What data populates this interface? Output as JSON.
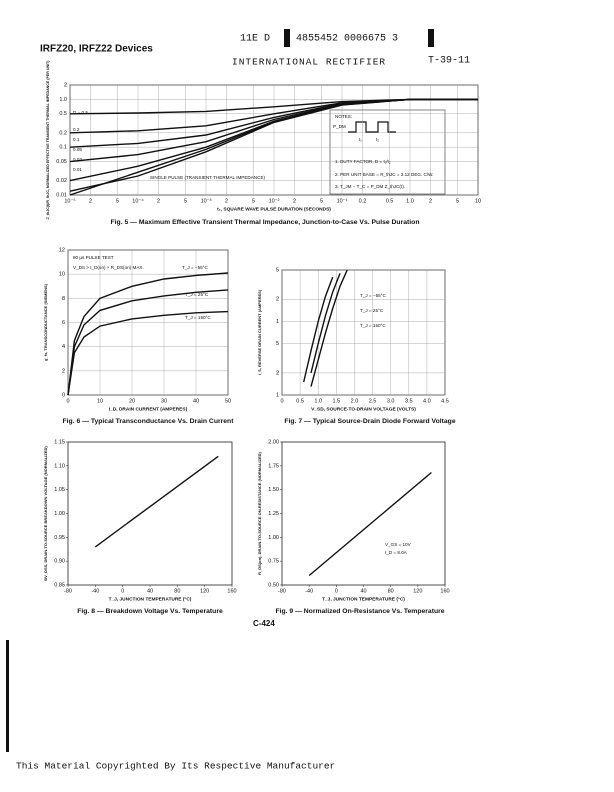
{
  "header": {
    "devices": "IRFZ20, IRFZ22 Devices",
    "code_a": "11E D",
    "code_b": "4855452 0006675 3",
    "company": "INTERNATIONAL RECTIFIER",
    "ref": "T-39-11"
  },
  "footer": {
    "page": "C-424",
    "copyright": "This Material Copyrighted By Its Respective Manufacturer"
  },
  "chart_data": [
    {
      "type": "line",
      "title": "Fig. 5 — Maximum Effective Transient Thermal Impedance, Junction-to-Case Vs. Pulse Duration",
      "x_label": "t₁, SQUARE WAVE PULSE DURATION (SECONDS)",
      "y_label": "Z_thJC(t)/R_thJC, NORMALIZED EFFECTIVE TRANSIENT THERMAL IMPEDANCE (PER UNIT)",
      "xscale": "log",
      "yscale": "log",
      "grid": true,
      "x": [
        1e-05,
        0.0001,
        0.001,
        0.01,
        0.1,
        1,
        10
      ],
      "series": [
        {
          "name": "D = 0.5",
          "color": "#111111",
          "values": [
            0.5,
            0.52,
            0.56,
            0.7,
            0.9,
            1,
            1
          ]
        },
        {
          "name": "0.2",
          "color": "#111111",
          "values": [
            0.2,
            0.22,
            0.28,
            0.5,
            0.85,
            1,
            1
          ]
        },
        {
          "name": "0.1",
          "color": "#111111",
          "values": [
            0.1,
            0.12,
            0.18,
            0.42,
            0.82,
            1,
            1
          ]
        },
        {
          "name": "0.05",
          "color": "#111111",
          "values": [
            0.05,
            0.07,
            0.13,
            0.38,
            0.8,
            1,
            1
          ]
        },
        {
          "name": "0.02",
          "color": "#111111",
          "values": [
            0.02,
            0.04,
            0.1,
            0.35,
            0.78,
            1,
            1
          ]
        },
        {
          "name": "0.01",
          "color": "#111111",
          "values": [
            0.01,
            0.03,
            0.09,
            0.34,
            0.77,
            1,
            1
          ]
        },
        {
          "name": "SINGLE PULSE (TRANSIENT THERMAL IMPEDANCE)",
          "color": "#111111",
          "values": [
            0.012,
            0.025,
            0.08,
            0.33,
            0.76,
            1,
            1
          ]
        }
      ],
      "annotations": [
        "NOTES:",
        "P_DM",
        "t₁",
        "t₂",
        "1. DUTY FACTOR, D = t₁/t₂",
        "2. PER UNIT BASE = R_thJC = 3.12 DEG. C/W.",
        "3. T_JM − T_C = P_DM Z_thJC(t)."
      ],
      "xlim": [
        1e-05,
        10
      ],
      "xticks": [
        {
          "value": 1e-05,
          "label": "10⁻⁵"
        },
        {
          "value": 2e-05,
          "label": "2"
        },
        {
          "value": 5e-05,
          "label": "5"
        },
        {
          "value": 0.0001,
          "label": "10⁻⁴"
        },
        {
          "value": 0.0002,
          "label": "2"
        },
        {
          "value": 0.0005,
          "label": "5"
        },
        {
          "value": 0.001,
          "label": "10⁻³"
        },
        {
          "value": 0.002,
          "label": "2"
        },
        {
          "value": 0.005,
          "label": "5"
        },
        {
          "value": 0.01,
          "label": "10⁻²"
        },
        {
          "value": 0.02,
          "label": "2"
        },
        {
          "value": 0.05,
          "label": "5"
        },
        {
          "value": 0.1,
          "label": "10⁻¹"
        },
        0.2,
        0.5,
        {
          "value": 1,
          "label": "1.0"
        },
        2,
        5,
        10
      ],
      "ylim": [
        0.01,
        2
      ],
      "yticks": [
        0.01,
        0.02,
        0.05,
        0.1,
        0.2,
        0.5,
        {
          "value": 1,
          "label": "1.0"
        },
        2
      ]
    },
    {
      "type": "line",
      "title": "Fig. 6 — Typical Transconductance Vs. Drain Current",
      "x_label": "I_D, DRAIN CURRENT (AMPERES)",
      "y_label": "g_fs, TRANSCONDUCTANCE (SIEMENS)",
      "grid": true,
      "x": [
        0,
        2,
        5,
        10,
        20,
        30,
        40,
        50
      ],
      "series": [
        {
          "name": "T_J = −55°C",
          "color": "#111111",
          "values": [
            0,
            4.5,
            6.5,
            8,
            9,
            9.6,
            9.9,
            10.1
          ]
        },
        {
          "name": "T_J = 25°C",
          "color": "#111111",
          "values": [
            0,
            4,
            5.8,
            7,
            7.8,
            8.2,
            8.5,
            8.7
          ]
        },
        {
          "name": "T_J = 150°C",
          "color": "#111111",
          "values": [
            0,
            3.5,
            4.8,
            5.7,
            6.3,
            6.6,
            6.8,
            6.9
          ]
        }
      ],
      "annotations": [
        "80 μs PULSE TEST",
        "V_DS > I_D(on) × R_DS(on) MAX."
      ],
      "xlim": [
        0,
        50
      ],
      "xticks": [
        0,
        10,
        20,
        30,
        40,
        50
      ],
      "ylim": [
        0,
        12
      ],
      "yticks": [
        0,
        2,
        4,
        6,
        8,
        10,
        12
      ]
    },
    {
      "type": "line",
      "title": "Fig. 7 — Typical Source-Drain Diode Forward Voltage",
      "x_label": "V_SD, SOURCE-TO-DRAIN VOLTAGE (VOLTS)",
      "y_label": "I_S, REVERSE DRAIN CURRENT (AMPERES)",
      "yscale": "log",
      "grid": true,
      "x": [
        0.6,
        0.8,
        1.0,
        1.2,
        1.4,
        1.6,
        1.8
      ],
      "series": [
        {
          "name": "T_J = −55°C",
          "color": "#111111",
          "values": [
            null,
            1.3,
            3,
            7,
            15,
            30,
            50
          ]
        },
        {
          "name": "T_J = 25°C",
          "color": "#111111",
          "values": [
            null,
            2,
            5,
            12,
            25,
            45,
            null
          ]
        },
        {
          "name": "T_J = 150°C",
          "color": "#111111",
          "values": [
            1.5,
            4,
            10,
            22,
            40,
            null,
            null
          ]
        }
      ],
      "xlim": [
        0,
        4.5
      ],
      "xticks": [
        0,
        0.5,
        {
          "value": 1,
          "label": "1.0"
        },
        1.5,
        {
          "value": 2,
          "label": "2.0"
        },
        2.5,
        {
          "value": 3,
          "label": "3.0"
        },
        3.5,
        {
          "value": 4,
          "label": "4.0"
        },
        4.5
      ],
      "ylim": [
        1,
        50
      ],
      "yticks": [
        1,
        2,
        5,
        {
          "value": 10,
          "label": "1"
        },
        {
          "value": 20,
          "label": "2"
        },
        {
          "value": 50,
          "label": "5"
        }
      ]
    },
    {
      "type": "line",
      "title": "Fig. 8 — Breakdown Voltage Vs. Temperature",
      "x_label": "T_J, JUNCTION TEMPERATURE (°C)",
      "y_label": "BV_DSS, DRAIN-TO-SOURCE BREAKDOWN VOLTAGE (NORMALIZED)",
      "grid": false,
      "x": [
        -40,
        140
      ],
      "series": [
        {
          "name": null,
          "color": "#111111",
          "values": [
            0.93,
            1.12
          ]
        }
      ],
      "xlim": [
        -80,
        160
      ],
      "xticks": [
        -80,
        -40,
        0,
        40,
        80,
        120,
        160
      ],
      "ylim": [
        0.85,
        1.15
      ],
      "yticks": [
        0.85,
        {
          "value": 0.9,
          "label": "0.90"
        },
        0.95,
        {
          "value": 1,
          "label": "1.00"
        },
        1.05,
        {
          "value": 1.1,
          "label": "1.10"
        },
        1.15
      ]
    },
    {
      "type": "line",
      "title": "Fig. 9 — Normalized On-Resistance Vs. Temperature",
      "x_label": "T_J, JUNCTION TEMPERATURE (°C)",
      "y_label": "R_DS(on), DRAIN-TO-SOURCE ON-RESISTANCE (NORMALIZED)",
      "grid": false,
      "x": [
        -40,
        140
      ],
      "series": [
        {
          "name": null,
          "color": "#111111",
          "values": [
            0.6,
            1.68
          ]
        }
      ],
      "annotations": [
        "V_GS = 10V",
        "I_D = 8.0A"
      ],
      "xlim": [
        -80,
        160
      ],
      "xticks": [
        -80,
        -40,
        0,
        40,
        80,
        120,
        160
      ],
      "ylim": [
        0.5,
        2
      ],
      "yticks": [
        {
          "value": 0.5,
          "label": "0.50"
        },
        0.75,
        {
          "value": 1,
          "label": "1.00"
        },
        1.25,
        {
          "value": 1.5,
          "label": "1.50"
        },
        1.75,
        {
          "value": 2,
          "label": "2.00"
        }
      ]
    }
  ]
}
